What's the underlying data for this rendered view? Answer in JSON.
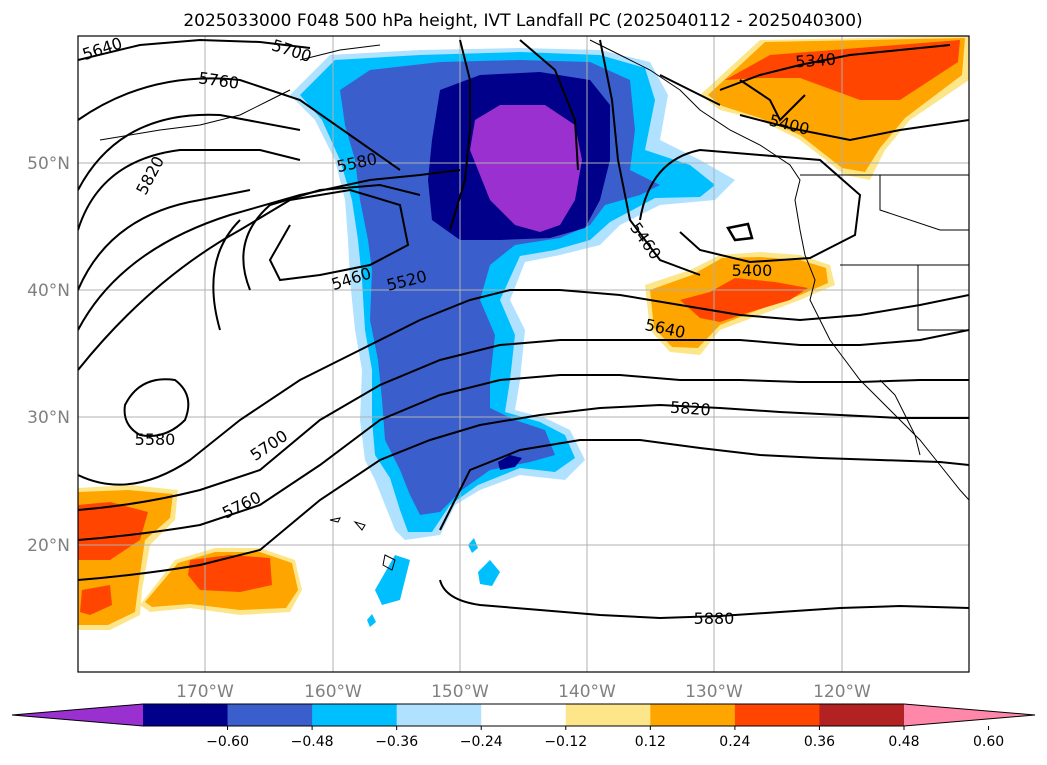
{
  "title": "2025033000 F048 500 hPa height, IVT Landfall PC (2025040112 - 2025040300)",
  "axes": {
    "lon_ticks": [
      "170°W",
      "160°W",
      "150°W",
      "140°W",
      "130°W",
      "120°W"
    ],
    "lat_ticks": [
      "50°N",
      "40°N",
      "30°N",
      "20°N"
    ],
    "lon_range": [
      -180,
      -110
    ],
    "lat_range": [
      10,
      60
    ],
    "grid": true
  },
  "contour_labels": [
    "5640",
    "5700",
    "5760",
    "5820",
    "5580",
    "5460",
    "5520",
    "5340",
    "5400",
    "5460",
    "5400",
    "5640",
    "5820",
    "5700",
    "5760",
    "5580",
    "5880"
  ],
  "colorbar": {
    "ticks": [
      "−0.60",
      "−0.48",
      "−0.36",
      "−0.24",
      "−0.12",
      "0.12",
      "0.24",
      "0.36",
      "0.48",
      "0.60"
    ],
    "colors": [
      "#9b30d0",
      "#00008b",
      "#3a5fcd",
      "#00bfff",
      "#b0e2ff",
      "#ffffff",
      "#fde68a",
      "#ffa500",
      "#ff4500",
      "#b22222",
      "#ff88aa"
    ],
    "extend": "both"
  },
  "chart_data": {
    "type": "heatmap",
    "field": "IVT Landfall PC (shaded) with 500 hPa height contours (dam·10)",
    "contour_interval_m": 60,
    "features": [
      {
        "kind": "negative",
        "value_min": -0.6,
        "region": "Gulf of Alaska to subtropical Pacific plume"
      },
      {
        "kind": "positive",
        "value_max": 0.48,
        "region": "Northern California / Oregon coast"
      },
      {
        "kind": "positive",
        "value_max": 0.48,
        "region": "British Columbia / Yukon"
      },
      {
        "kind": "positive",
        "value_max": 0.36,
        "region": "West Pacific near dateline, 15-25°N"
      }
    ]
  }
}
